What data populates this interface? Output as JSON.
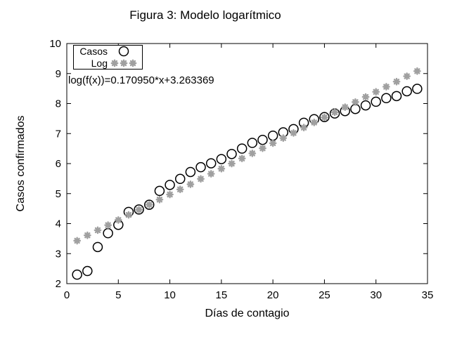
{
  "title": "Figura 3: Modelo logarítmico",
  "annotation": "log(f(x))=0.170950*x+3.263369",
  "legend": {
    "items": [
      {
        "label": "Casos",
        "marker": "circle"
      },
      {
        "label": "Log",
        "marker": "asterisk"
      }
    ]
  },
  "colors": {
    "casos": "#000000",
    "log": "#a0a0a0",
    "frame": "#000000",
    "background": "#ffffff"
  },
  "chart_data": {
    "type": "scatter",
    "title": "Figura 3: Modelo logarítmico",
    "xlabel": "Días de contagio",
    "ylabel": "Casos confirmados",
    "xlim": [
      0,
      35
    ],
    "ylim": [
      2,
      10
    ],
    "x_ticks": [
      0,
      5,
      10,
      15,
      20,
      25,
      30,
      35
    ],
    "y_ticks": [
      2,
      3,
      4,
      5,
      6,
      7,
      8,
      9,
      10
    ],
    "grid": false,
    "legend_position": "top-left-inside",
    "annotation": "log(f(x))=0.170950*x+3.263369",
    "x": [
      1,
      2,
      3,
      4,
      5,
      6,
      7,
      8,
      9,
      10,
      11,
      12,
      13,
      14,
      15,
      16,
      17,
      18,
      19,
      20,
      21,
      22,
      23,
      24,
      25,
      26,
      27,
      28,
      29,
      30,
      31,
      32,
      33,
      34
    ],
    "series": [
      {
        "name": "Casos",
        "marker": "circle",
        "color": "#000000",
        "values": [
          2.3,
          2.42,
          3.22,
          3.68,
          3.96,
          4.39,
          4.47,
          4.63,
          5.09,
          5.29,
          5.49,
          5.72,
          5.88,
          6.01,
          6.15,
          6.32,
          6.5,
          6.69,
          6.79,
          6.93,
          7.04,
          7.15,
          7.36,
          7.48,
          7.55,
          7.67,
          7.75,
          7.82,
          7.94,
          8.06,
          8.18,
          8.25,
          8.41,
          8.49
        ]
      },
      {
        "name": "Log",
        "marker": "asterisk",
        "color": "#a0a0a0",
        "formula": "log(f(x))=0.170950*x+3.263369",
        "values": [
          3.43,
          3.61,
          3.78,
          3.95,
          4.12,
          4.29,
          4.46,
          4.63,
          4.8,
          4.97,
          5.14,
          5.31,
          5.49,
          5.66,
          5.83,
          6.0,
          6.17,
          6.34,
          6.51,
          6.68,
          6.85,
          7.02,
          7.2,
          7.37,
          7.54,
          7.71,
          7.88,
          8.05,
          8.22,
          8.39,
          8.56,
          8.73,
          8.91,
          9.08
        ]
      }
    ]
  }
}
